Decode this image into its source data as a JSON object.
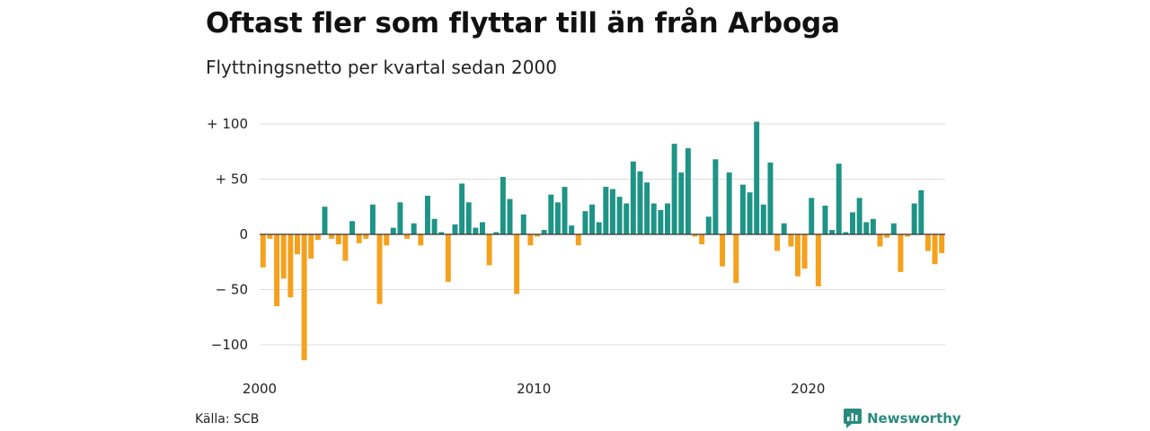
{
  "title": "Oftast fler som flyttar till än från Arboga",
  "subtitle": "Flyttningsnetto per kvartal sedan 2000",
  "source": "Källa: SCB",
  "brand": "Newsworthy",
  "colors": {
    "positive": "#1e9486",
    "negative": "#f5a11d",
    "grid": "#dddddd",
    "zero": "#333333",
    "brand": "#2a8a7e"
  },
  "chart_data": {
    "type": "bar",
    "title": "Oftast fler som flyttar till än från Arboga",
    "subtitle": "Flyttningsnetto per kvartal sedan 2000",
    "ylim": [
      -120,
      100
    ],
    "yticks": [
      {
        "value": 100,
        "label": "+ 100"
      },
      {
        "value": 50,
        "label": "+  50"
      },
      {
        "value": 0,
        "label": "0"
      },
      {
        "value": -50,
        "label": "− 50"
      },
      {
        "value": -100,
        "label": "−100"
      }
    ],
    "xticks": [
      "2000",
      "2010",
      "2020"
    ],
    "grid": true,
    "values": [
      -30,
      -4,
      -65,
      -40,
      -57,
      -18,
      -114,
      -22,
      -5,
      25,
      -4,
      -9,
      -24,
      12,
      -8,
      -4,
      27,
      -63,
      -10,
      6,
      29,
      -4,
      10,
      -10,
      35,
      14,
      2,
      -43,
      9,
      46,
      29,
      6,
      11,
      -28,
      2,
      52,
      32,
      -54,
      18,
      -10,
      -2,
      4,
      36,
      29,
      43,
      8,
      -10,
      21,
      27,
      11,
      43,
      41,
      34,
      28,
      66,
      57,
      47,
      28,
      22,
      28,
      82,
      56,
      78,
      -2,
      -9,
      16,
      68,
      -29,
      56,
      -44,
      45,
      38,
      102,
      27,
      65,
      -15,
      10,
      -11,
      -38,
      -31,
      33,
      -47,
      26,
      4,
      64,
      2,
      20,
      33,
      11,
      14,
      -11,
      -3,
      10,
      -34,
      -2,
      28,
      40,
      -15,
      -27,
      -17
    ]
  }
}
